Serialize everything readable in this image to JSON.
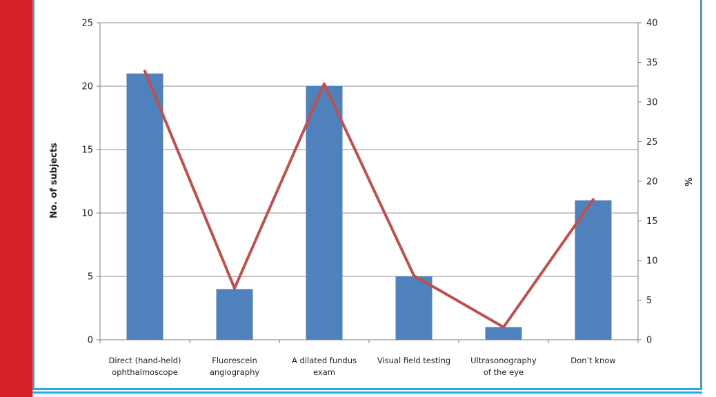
{
  "colors": {
    "bar": "#4f81bd",
    "line": "#c0504d",
    "accent_left": "#d42127",
    "frame": "#27a9e1"
  },
  "chart_data": {
    "type": "bar",
    "categories": [
      [
        "Direct (hand-held)",
        "ophthalmoscope"
      ],
      [
        "Fluorescein",
        "angiography"
      ],
      [
        "A dilated fundus",
        "exam"
      ],
      [
        "Visual field testing"
      ],
      [
        "Ultrasonography",
        "of the eye"
      ],
      [
        "Don’t know"
      ]
    ],
    "series": [
      {
        "type": "bar",
        "axis": "left",
        "values": [
          21,
          4,
          20,
          5,
          1,
          11
        ]
      },
      {
        "type": "line",
        "axis": "right",
        "values": [
          33.9,
          6.5,
          32.3,
          8.1,
          1.6,
          17.7
        ]
      }
    ],
    "ylabel": "No. of subjects",
    "y2label": "%",
    "ylim": [
      0,
      25
    ],
    "y2lim": [
      0,
      40
    ],
    "yticks": [
      0,
      5,
      10,
      15,
      20,
      25
    ],
    "y2ticks": [
      0,
      5,
      10,
      15,
      20,
      25,
      30,
      35,
      40
    ],
    "grid": true
  }
}
